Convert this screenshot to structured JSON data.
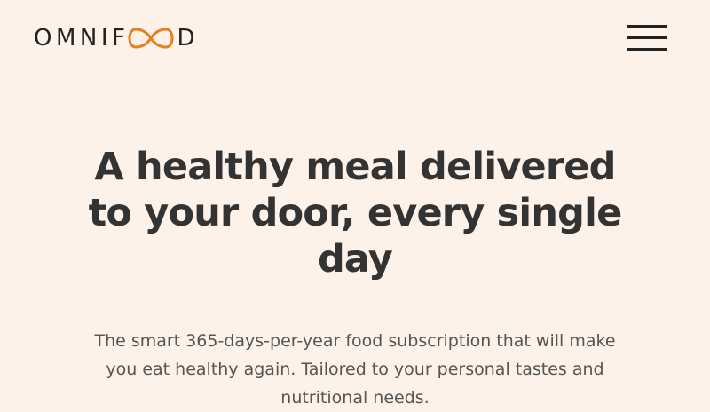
{
  "brand": {
    "logo_text": "OMNIFOOD",
    "logo_prefix": "OMNIF",
    "logo_suffix": "D",
    "accent": "#e67e22"
  },
  "nav": {
    "menu_icon": "hamburger-menu-icon"
  },
  "hero": {
    "title": "A healthy meal delivered to your door, every single day",
    "description": "The smart 365-days-per-year food subscription that will make you eat healthy again. Tailored to your personal tastes and nutritional needs."
  },
  "colors": {
    "background": "#fdf2e9",
    "text": "#333333"
  }
}
